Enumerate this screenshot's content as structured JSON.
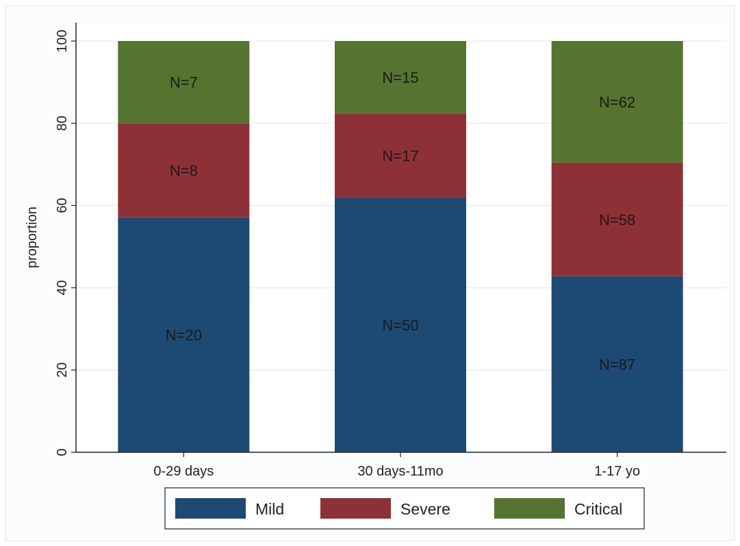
{
  "chart_data": {
    "type": "bar",
    "stacked": true,
    "categories": [
      "0-29 days",
      "30 days-11mo",
      "1-17 yo"
    ],
    "series": [
      {
        "name": "Mild",
        "color": "#1d4a73",
        "values": [
          57.1,
          61.9,
          42.8
        ],
        "labels": [
          "N=20",
          "N=50",
          "N=87"
        ]
      },
      {
        "name": "Severe",
        "color": "#8e3137",
        "values": [
          22.9,
          20.5,
          27.6
        ],
        "labels": [
          "N=8",
          "N=17",
          "N=58"
        ]
      },
      {
        "name": "Critical",
        "color": "#55742f",
        "values": [
          20.0,
          17.6,
          29.6
        ],
        "labels": [
          "N=7",
          "N=15",
          "N=62"
        ]
      }
    ],
    "ylabel": "proportion",
    "xlabel": "",
    "ylim": [
      0,
      100
    ],
    "yticks": [
      "0",
      "20",
      "40",
      "60",
      "80",
      "100"
    ],
    "grid": true,
    "legend_position": "bottom"
  }
}
